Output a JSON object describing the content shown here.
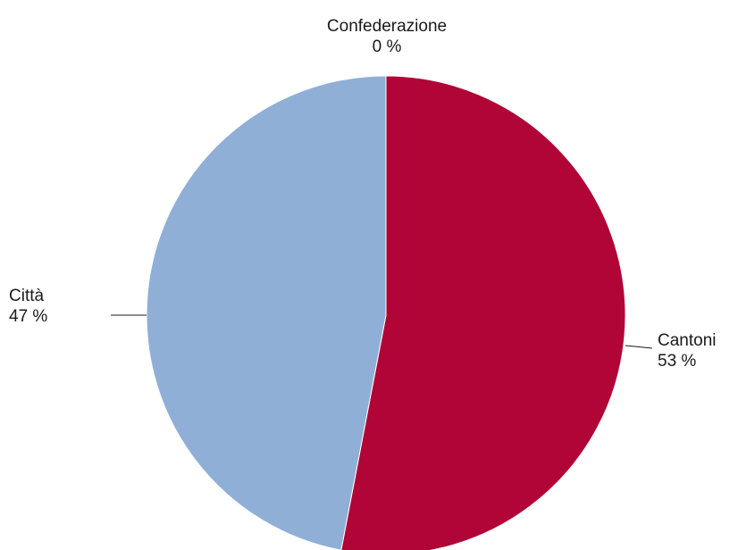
{
  "chart_data": {
    "type": "pie",
    "slices": [
      {
        "label": "Confederazione",
        "value": 0,
        "value_label": "0 %",
        "color": "#b00536"
      },
      {
        "label": "Cantoni",
        "value": 53,
        "value_label": "53 %",
        "color": "#b00536"
      },
      {
        "label": "Città",
        "value": 47,
        "value_label": "47 %",
        "color": "#8fafd6"
      }
    ],
    "start_angle": "12 o'clock",
    "direction": "clockwise",
    "legend": "none"
  }
}
